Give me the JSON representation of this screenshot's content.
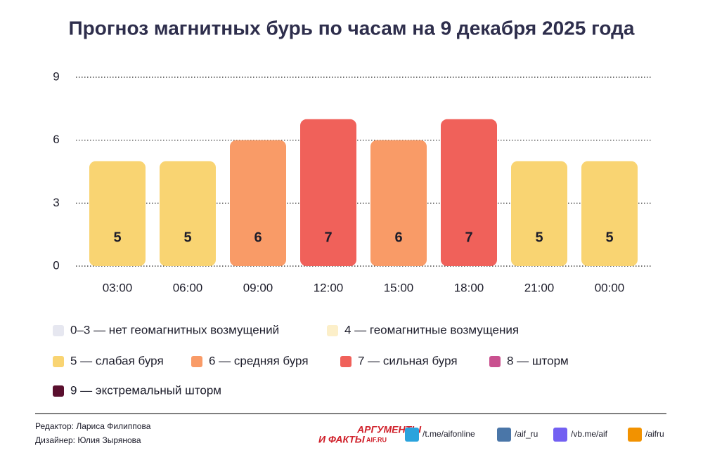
{
  "chart_data": {
    "type": "bar",
    "title": "Прогноз магнитных бурь по часам на 9 декабря 2025 года",
    "categories": [
      "03:00",
      "06:00",
      "09:00",
      "12:00",
      "15:00",
      "18:00",
      "21:00",
      "00:00"
    ],
    "values": [
      5,
      5,
      6,
      7,
      6,
      7,
      5,
      5
    ],
    "colors": [
      "#f9d472",
      "#f9d472",
      "#f99b67",
      "#f0615a",
      "#f99b67",
      "#f0615a",
      "#f9d472",
      "#f9d472"
    ],
    "ylim": [
      0,
      9
    ],
    "yticks": [
      0,
      3,
      6,
      9
    ],
    "grid": true,
    "legend": [
      {
        "label": "0–3 — нет геомагнитных возмущений",
        "color": "#e6e7f0"
      },
      {
        "label": "4 — геомагнитные возмущения",
        "color": "#fcefc9"
      },
      {
        "label": "5 — слабая буря",
        "color": "#f9d472"
      },
      {
        "label": "6 — средняя буря",
        "color": "#f99b67"
      },
      {
        "label": "7 — сильная буря",
        "color": "#f0615a"
      },
      {
        "label": "8 — шторм",
        "color": "#c9508f"
      },
      {
        "label": "9 — экстремальный шторм",
        "color": "#5a0f2e"
      }
    ]
  },
  "footer": {
    "editor": "Редактор: Лариса Филиппова",
    "designer": "Дизайнер: Юлия Зырянова",
    "logo": [
      "АРГУМЕНТЫ",
      "И ФАКТЫ",
      "AIF.RU"
    ],
    "links": [
      "/t.me/aifonline",
      "/aif_ru",
      "/vb.me/aif",
      "/aifru"
    ]
  }
}
